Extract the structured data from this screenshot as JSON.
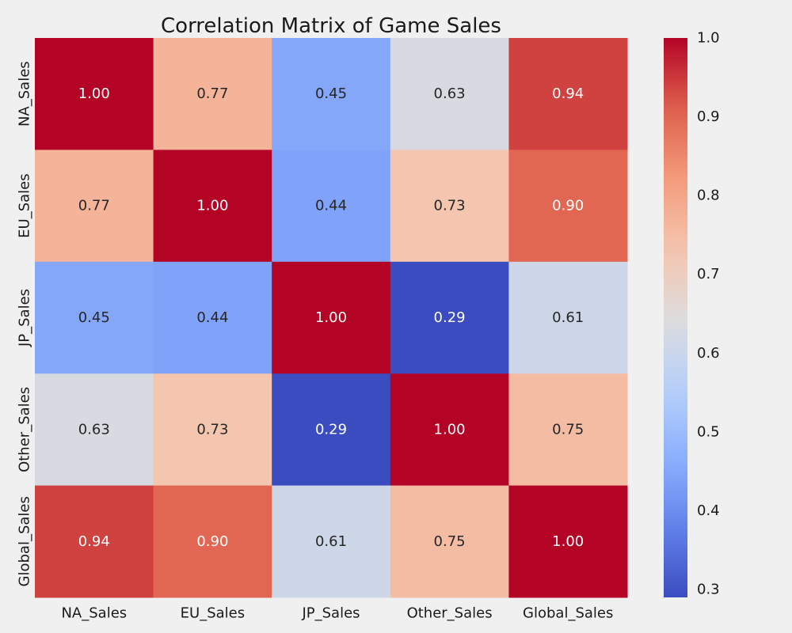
{
  "chart_data": {
    "type": "heatmap",
    "title": "Correlation Matrix of Game Sales",
    "xlabel": "",
    "ylabel": "",
    "x_categories": [
      "NA_Sales",
      "EU_Sales",
      "JP_Sales",
      "Other_Sales",
      "Global_Sales"
    ],
    "y_categories": [
      "NA_Sales",
      "EU_Sales",
      "JP_Sales",
      "Other_Sales",
      "Global_Sales"
    ],
    "values": [
      [
        1.0,
        0.77,
        0.45,
        0.63,
        0.94
      ],
      [
        0.77,
        1.0,
        0.44,
        0.73,
        0.9
      ],
      [
        0.45,
        0.44,
        1.0,
        0.29,
        0.61
      ],
      [
        0.63,
        0.73,
        0.29,
        1.0,
        0.75
      ],
      [
        0.94,
        0.9,
        0.61,
        0.75,
        1.0
      ]
    ],
    "value_format": "0.00",
    "colormap": "coolwarm",
    "colorbar": {
      "range": [
        0.29,
        1.0
      ],
      "ticks": [
        0.3,
        0.4,
        0.5,
        0.6,
        0.7,
        0.8,
        0.9,
        1.0
      ],
      "tick_labels": [
        "0.3",
        "0.4",
        "0.5",
        "0.6",
        "0.7",
        "0.8",
        "0.9",
        "1.0"
      ],
      "placement": "right"
    },
    "grid": false,
    "colors": {
      "background": "#f0f0f0",
      "low": "#3b4cc0",
      "mid": "#dddcdc",
      "high": "#b40426"
    }
  }
}
